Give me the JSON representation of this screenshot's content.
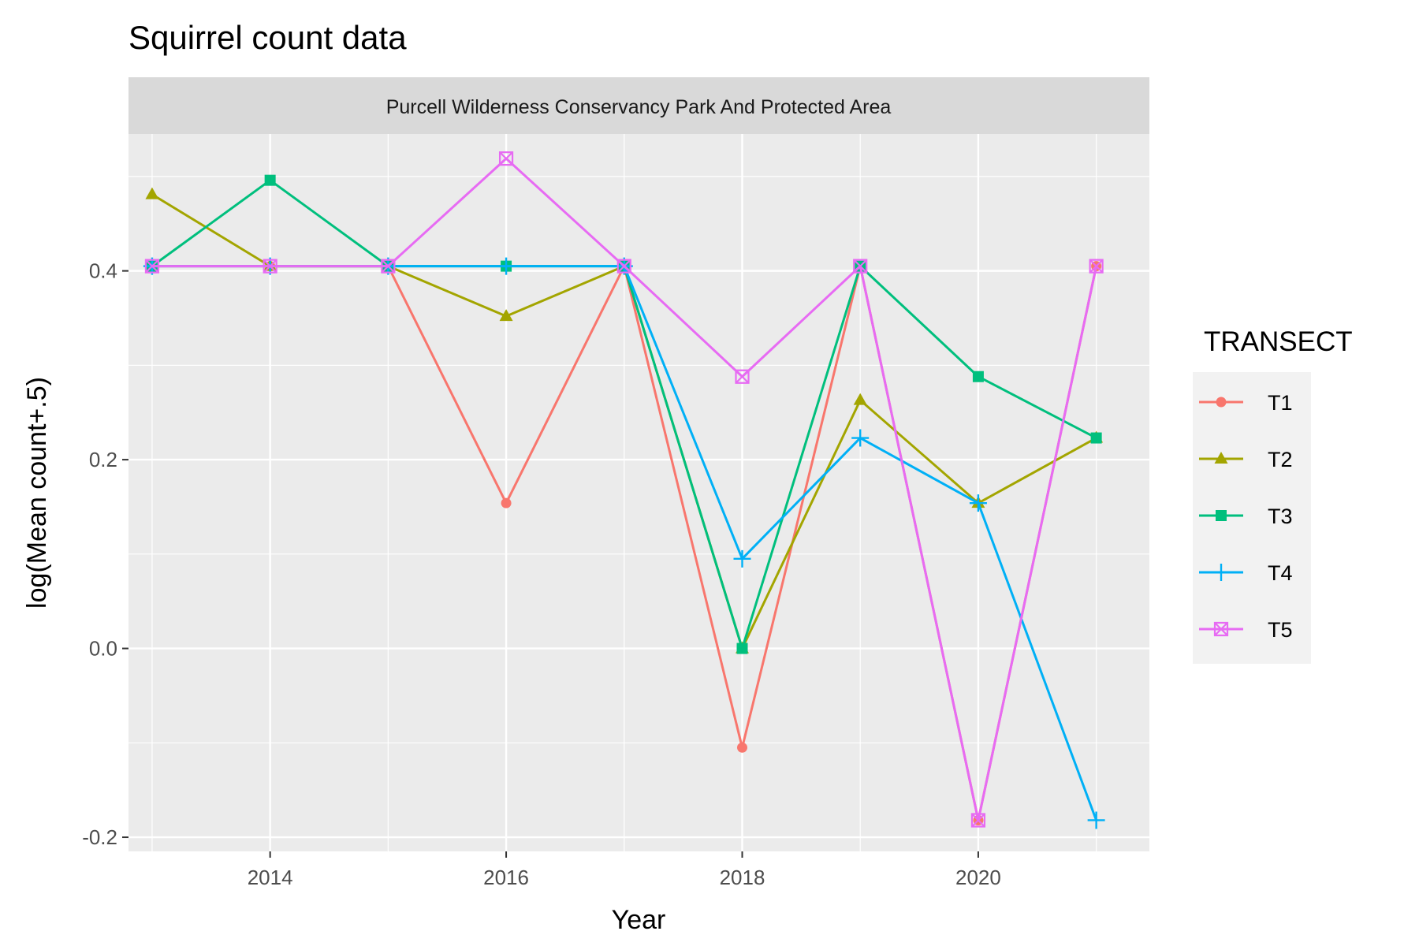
{
  "chart_data": {
    "type": "line",
    "title": "Squirrel count data",
    "facet_label": "Purcell Wilderness Conservancy Park And Protected Area",
    "xlabel": "Year",
    "ylabel": "log(Mean count+.5)",
    "xlim": [
      2012.8,
      2021.45
    ],
    "ylim": [
      -0.215,
      0.545
    ],
    "x_ticks": [
      2014,
      2016,
      2018,
      2020
    ],
    "x_tick_labels": [
      "2014",
      "2016",
      "2018",
      "2020"
    ],
    "y_ticks": [
      -0.2,
      0.0,
      0.2,
      0.4
    ],
    "y_tick_labels": [
      "-0.2",
      "0.0",
      "0.2",
      "0.4"
    ],
    "grid": true,
    "panel_background": "#ebebeb",
    "strip_background": "#d9d9d9",
    "legend": {
      "title": "TRANSECT",
      "position": "right"
    },
    "x": [
      2013,
      2014,
      2015,
      2016,
      2017,
      2018,
      2019,
      2020,
      2021
    ],
    "series": [
      {
        "name": "T1",
        "color": "#f8766d",
        "shape": "circle",
        "values": [
          0.405,
          0.405,
          0.405,
          0.154,
          0.405,
          -0.105,
          0.405,
          -0.182,
          0.405
        ]
      },
      {
        "name": "T2",
        "color": "#a3a500",
        "shape": "triangle",
        "values": [
          0.481,
          0.405,
          0.405,
          0.352,
          0.405,
          0.0,
          0.263,
          0.154,
          0.223
        ]
      },
      {
        "name": "T3",
        "color": "#00bf7d",
        "shape": "square",
        "values": [
          0.405,
          0.496,
          0.405,
          0.405,
          0.405,
          0.0,
          0.405,
          0.288,
          0.223
        ]
      },
      {
        "name": "T4",
        "color": "#00b0f6",
        "shape": "plus",
        "values": [
          0.405,
          0.405,
          0.405,
          0.405,
          0.405,
          0.095,
          0.223,
          0.154,
          -0.182
        ]
      },
      {
        "name": "T5",
        "color": "#e76bf3",
        "shape": "boxcross",
        "values": [
          0.405,
          0.405,
          0.405,
          0.519,
          0.405,
          0.288,
          0.405,
          -0.182,
          0.405
        ]
      }
    ]
  }
}
